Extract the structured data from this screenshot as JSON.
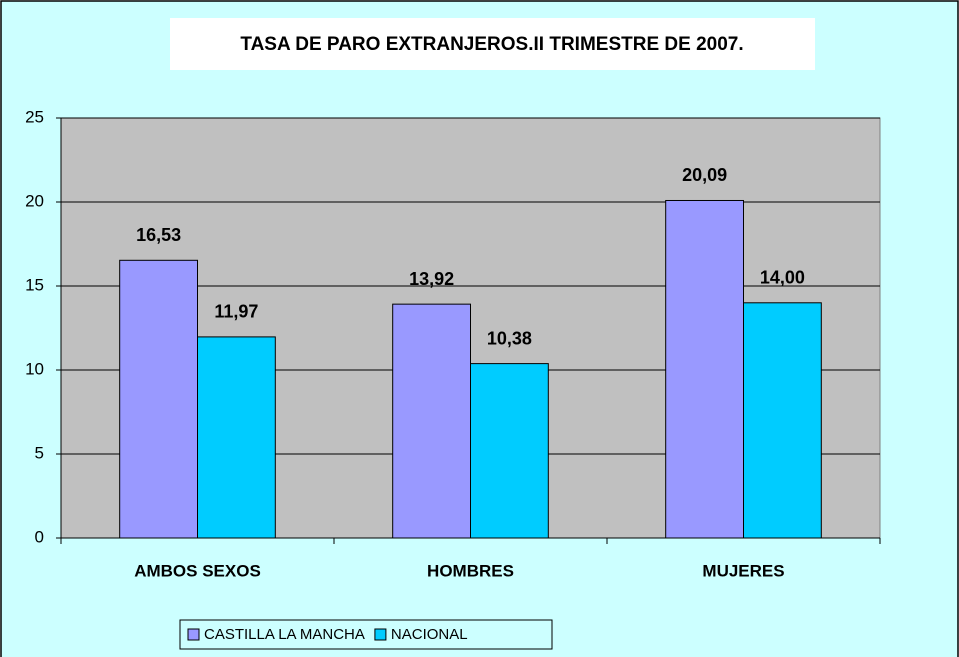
{
  "chart_data": {
    "type": "bar",
    "title": "TASA DE PARO EXTRANJEROS.II TRIMESTRE DE 2007.",
    "categories": [
      "AMBOS SEXOS",
      "HOMBRES",
      "MUJERES"
    ],
    "series": [
      {
        "name": "CASTILLA LA MANCHA",
        "color": "#9999ff",
        "values": [
          16.53,
          13.92,
          20.09
        ],
        "value_labels": [
          "16,53",
          "13,92",
          "20,09"
        ]
      },
      {
        "name": "NACIONAL",
        "color": "#00ccff",
        "values": [
          11.97,
          10.38,
          14.0
        ],
        "value_labels": [
          "11,97",
          "10,38",
          "14,00"
        ]
      }
    ],
    "ylim": [
      0,
      25
    ],
    "yticks": [
      0,
      5,
      10,
      15,
      20,
      25
    ],
    "grid": true,
    "legend": "bottom"
  }
}
